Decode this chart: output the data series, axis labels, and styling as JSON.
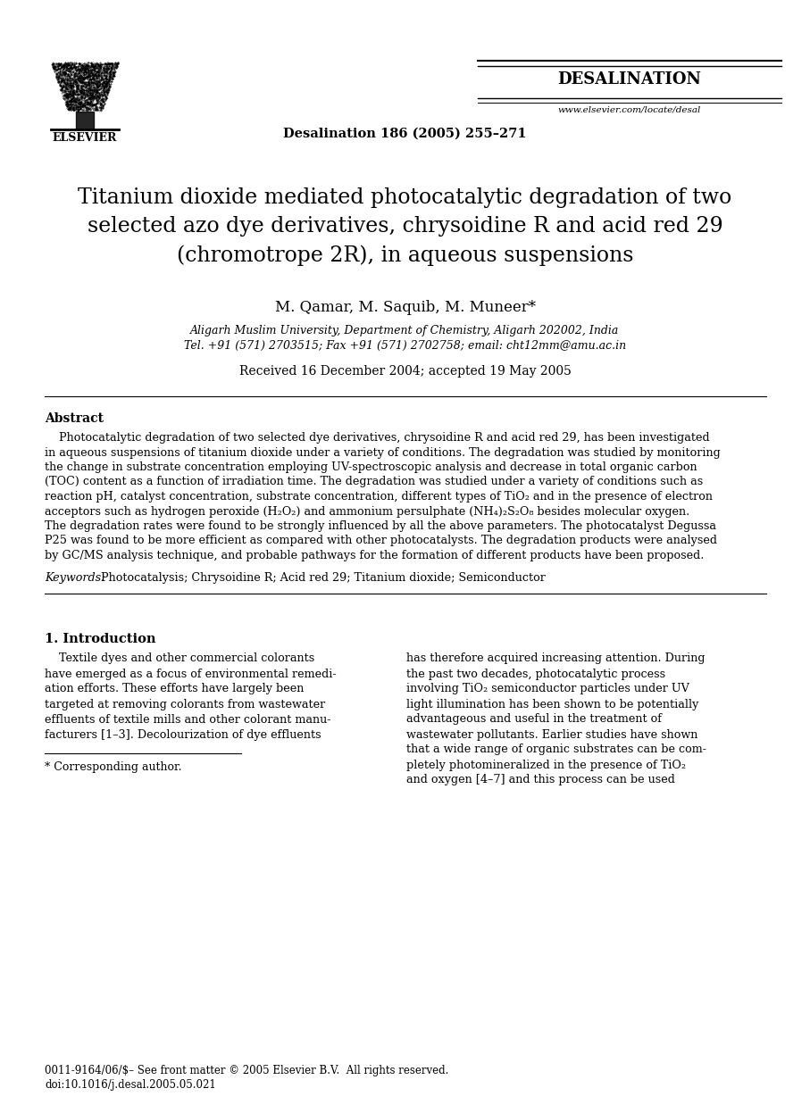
{
  "bg_color": "#ffffff",
  "page_width": 9.07,
  "page_height": 12.38,
  "dpi": 100,
  "text_color": "#000000",
  "header": {
    "elsevier_text": "ELSEVIER",
    "journal_center": "Desalination 186 (2005) 255–271",
    "journal_name": "DESALINATION",
    "journal_url": "www.elsevier.com/locate/desal"
  },
  "title_lines": [
    "Titanium dioxide mediated photocatalytic degradation of two",
    "selected azo dye derivatives, chrysoidine R and acid red 29",
    "(chromotrope 2R), in aqueous suspensions"
  ],
  "authors": "M. Qamar, M. Saquib, M. Muneer*",
  "affiliation1": "Aligarh Muslim University, Department of Chemistry, Aligarh 202002, India",
  "affiliation2": "Tel. +91 (571) 2703515; Fax +91 (571) 2702758; email: cht12mm@amu.ac.in",
  "received": "Received 16 December 2004; accepted 19 May 2005",
  "abstract_heading": "Abstract",
  "abstract_lines": [
    "    Photocatalytic degradation of two selected dye derivatives, chrysoidine R and acid red 29, has been investigated",
    "in aqueous suspensions of titanium dioxide under a variety of conditions. The degradation was studied by monitoring",
    "the change in substrate concentration employing UV-spectroscopic analysis and decrease in total organic carbon",
    "(TOC) content as a function of irradiation time. The degradation was studied under a variety of conditions such as",
    "reaction pH, catalyst concentration, substrate concentration, different types of TiO₂ and in the presence of electron",
    "acceptors such as hydrogen peroxide (H₂O₂) and ammonium persulphate (NH₄)₂S₂O₈ besides molecular oxygen.",
    "The degradation rates were found to be strongly influenced by all the above parameters. The photocatalyst Degussa",
    "P25 was found to be more efficient as compared with other photocatalysts. The degradation products were analysed",
    "by GC/MS analysis technique, and probable pathways for the formation of different products have been proposed."
  ],
  "keywords_italic": "Keywords: ",
  "keywords_rest": "Photocatalysis; Chrysoidine R; Acid red 29; Titanium dioxide; Semiconductor",
  "intro_heading": "1. Introduction",
  "intro_left_lines": [
    "    Textile dyes and other commercial colorants",
    "have emerged as a focus of environmental remedi-",
    "ation efforts. These efforts have largely been",
    "targeted at removing colorants from wastewater",
    "effluents of textile mills and other colorant manu-",
    "facturers [1–3]. Decolourization of dye effluents"
  ],
  "intro_right_lines": [
    "has therefore acquired increasing attention. During",
    "the past two decades, photocatalytic process",
    "involving TiO₂ semiconductor particles under UV",
    "light illumination has been shown to be potentially",
    "advantageous and useful in the treatment of",
    "wastewater pollutants. Earlier studies have shown",
    "that a wide range of organic substrates can be com-",
    "pletely photomineralized in the presence of TiO₂",
    "and oxygen [4–7] and this process can be used"
  ],
  "footnote_text": "* Corresponding author.",
  "copyright_line1": "0011-9164/06/$– See front matter © 2005 Elsevier B.V.  All rights reserved.",
  "copyright_line2": "doi:10.1016/j.desal.2005.05.021"
}
